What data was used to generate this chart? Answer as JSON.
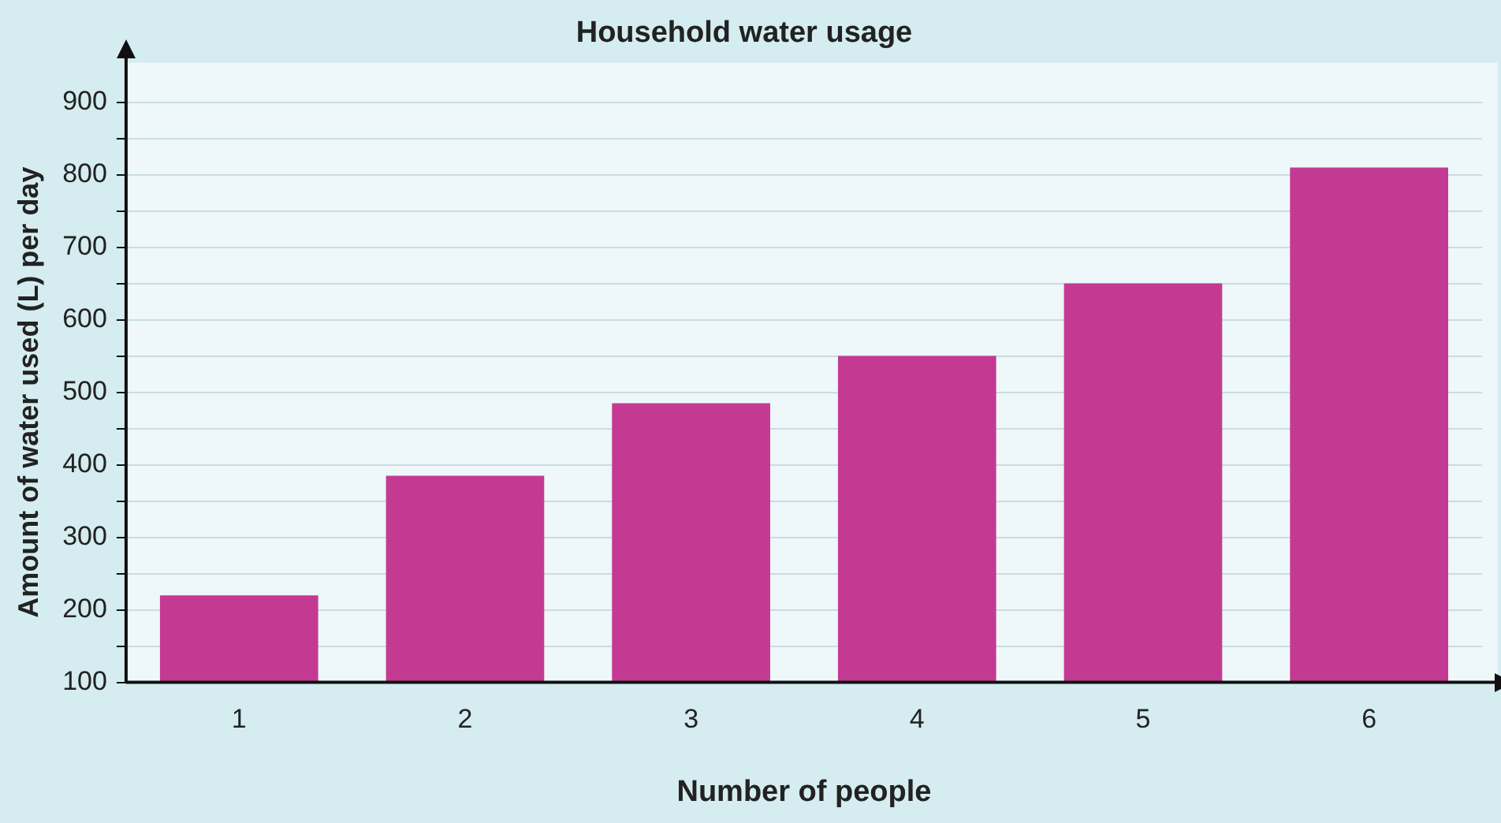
{
  "chart_data": {
    "type": "bar",
    "title": "Household water usage",
    "xlabel": "Number of people",
    "ylabel": "Amount of water used (L) per day",
    "categories": [
      "1",
      "2",
      "3",
      "4",
      "5",
      "6"
    ],
    "values": [
      220,
      385,
      485,
      550,
      650,
      810
    ],
    "color": "#c43a93",
    "ylim": [
      100,
      900
    ],
    "yticks": [
      100,
      {
        "value": 150,
        "label": null
      },
      200,
      {
        "value": 250,
        "label": null
      },
      300,
      {
        "value": 350,
        "label": null
      },
      400,
      {
        "value": 450,
        "label": null
      },
      500,
      {
        "value": 550,
        "label": null
      },
      600,
      {
        "value": 650,
        "label": null
      },
      700,
      {
        "value": 750,
        "label": null
      },
      800,
      {
        "value": 850,
        "label": null
      },
      900
    ],
    "grid": "y",
    "legend": false
  }
}
